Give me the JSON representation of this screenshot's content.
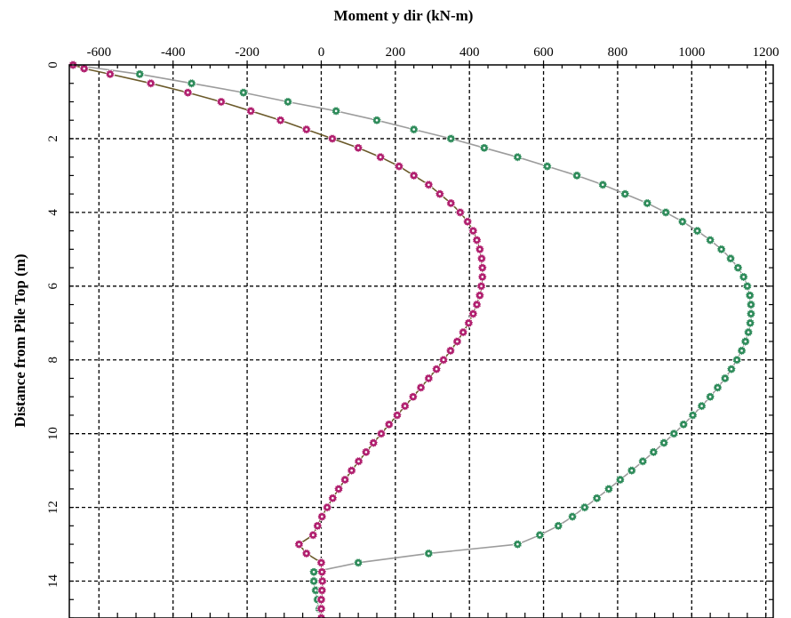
{
  "chart_data": {
    "type": "line",
    "title": "",
    "xlabel": "Moment y dir (kN-m)",
    "ylabel": "Distance from Pile Top (m)",
    "x_axis_position": "top",
    "y_axis_inverted": true,
    "xlim": [
      -680,
      1220
    ],
    "ylim": [
      0,
      15
    ],
    "x_ticks": [
      -600,
      -400,
      -200,
      0,
      200,
      400,
      600,
      800,
      1000,
      1200
    ],
    "y_ticks": [
      0,
      2,
      4,
      6,
      8,
      10,
      12,
      14
    ],
    "grid": true,
    "legend": "none",
    "series": [
      {
        "color": "#b01f6e",
        "line_color": "#6b5a2a",
        "marker": "gear",
        "points": [
          [
            -670,
            0.0
          ],
          [
            -640,
            0.1
          ],
          [
            -570,
            0.25
          ],
          [
            -460,
            0.5
          ],
          [
            -360,
            0.75
          ],
          [
            -270,
            1.0
          ],
          [
            -190,
            1.25
          ],
          [
            -110,
            1.5
          ],
          [
            -40,
            1.75
          ],
          [
            30,
            2.0
          ],
          [
            100,
            2.25
          ],
          [
            160,
            2.5
          ],
          [
            210,
            2.75
          ],
          [
            250,
            3.0
          ],
          [
            290,
            3.25
          ],
          [
            320,
            3.5
          ],
          [
            350,
            3.75
          ],
          [
            375,
            4.0
          ],
          [
            395,
            4.25
          ],
          [
            410,
            4.5
          ],
          [
            420,
            4.75
          ],
          [
            428,
            5.0
          ],
          [
            433,
            5.25
          ],
          [
            435,
            5.5
          ],
          [
            435,
            5.75
          ],
          [
            432,
            6.0
          ],
          [
            428,
            6.25
          ],
          [
            420,
            6.5
          ],
          [
            410,
            6.75
          ],
          [
            398,
            7.0
          ],
          [
            383,
            7.25
          ],
          [
            367,
            7.5
          ],
          [
            349,
            7.75
          ],
          [
            330,
            8.0
          ],
          [
            311,
            8.25
          ],
          [
            290,
            8.5
          ],
          [
            269,
            8.75
          ],
          [
            248,
            9.0
          ],
          [
            226,
            9.25
          ],
          [
            205,
            9.5
          ],
          [
            183,
            9.75
          ],
          [
            162,
            10.0
          ],
          [
            141,
            10.25
          ],
          [
            121,
            10.5
          ],
          [
            101,
            10.75
          ],
          [
            82,
            11.0
          ],
          [
            64,
            11.25
          ],
          [
            47,
            11.5
          ],
          [
            31,
            11.75
          ],
          [
            16,
            12.0
          ],
          [
            2,
            12.25
          ],
          [
            -10,
            12.5
          ],
          [
            -22,
            12.75
          ],
          [
            -60,
            13.0
          ],
          [
            -40,
            13.25
          ],
          [
            0,
            13.5
          ],
          [
            2,
            13.75
          ],
          [
            3,
            14.0
          ],
          [
            2,
            14.25
          ],
          [
            0,
            14.5
          ],
          [
            0,
            14.75
          ],
          [
            0,
            15.0
          ]
        ]
      },
      {
        "color": "#2e8b5a",
        "line_color": "#9c9c9c",
        "marker": "gear",
        "points": [
          [
            -670,
            0.0
          ],
          [
            -490,
            0.25
          ],
          [
            -350,
            0.5
          ],
          [
            -210,
            0.75
          ],
          [
            -90,
            1.0
          ],
          [
            40,
            1.25
          ],
          [
            150,
            1.5
          ],
          [
            250,
            1.75
          ],
          [
            350,
            2.0
          ],
          [
            440,
            2.25
          ],
          [
            530,
            2.5
          ],
          [
            610,
            2.75
          ],
          [
            690,
            3.0
          ],
          [
            760,
            3.25
          ],
          [
            820,
            3.5
          ],
          [
            880,
            3.75
          ],
          [
            930,
            4.0
          ],
          [
            975,
            4.25
          ],
          [
            1015,
            4.5
          ],
          [
            1050,
            4.75
          ],
          [
            1080,
            5.0
          ],
          [
            1105,
            5.25
          ],
          [
            1125,
            5.5
          ],
          [
            1140,
            5.75
          ],
          [
            1150,
            6.0
          ],
          [
            1157,
            6.25
          ],
          [
            1160,
            6.5
          ],
          [
            1160,
            6.75
          ],
          [
            1158,
            7.0
          ],
          [
            1153,
            7.25
          ],
          [
            1145,
            7.5
          ],
          [
            1135,
            7.75
          ],
          [
            1122,
            8.0
          ],
          [
            1107,
            8.25
          ],
          [
            1090,
            8.5
          ],
          [
            1070,
            8.75
          ],
          [
            1050,
            9.0
          ],
          [
            1027,
            9.25
          ],
          [
            1003,
            9.5
          ],
          [
            978,
            9.75
          ],
          [
            952,
            10.0
          ],
          [
            925,
            10.25
          ],
          [
            897,
            10.5
          ],
          [
            868,
            10.75
          ],
          [
            838,
            11.0
          ],
          [
            807,
            11.25
          ],
          [
            776,
            11.5
          ],
          [
            744,
            11.75
          ],
          [
            711,
            12.0
          ],
          [
            678,
            12.25
          ],
          [
            640,
            12.5
          ],
          [
            590,
            12.75
          ],
          [
            530,
            13.0
          ],
          [
            290,
            13.25
          ],
          [
            100,
            13.5
          ],
          [
            -20,
            13.75
          ],
          [
            -20,
            14.0
          ],
          [
            -15,
            14.25
          ],
          [
            -10,
            14.5
          ],
          [
            -5,
            14.75
          ],
          [
            0,
            15.0
          ]
        ]
      }
    ]
  }
}
